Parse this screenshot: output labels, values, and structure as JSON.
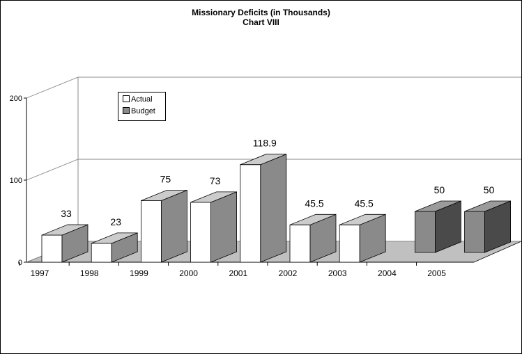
{
  "colors": {
    "actual_front": "#ffffff",
    "actual_top": "#cccccc",
    "budget_front": "#8a8a8a",
    "budget_side": "#4a4a4a",
    "budget_top": "#9b9b9b",
    "floor": "#c0c0c0"
  },
  "chart_data": {
    "type": "bar",
    "title": "Missionary Deficits (in Thousands)",
    "subtitle": "Chart VIII",
    "categories": [
      "1997",
      "1998",
      "1999",
      "2000",
      "2001",
      "2002",
      "2003",
      "2004",
      "2005"
    ],
    "series": [
      {
        "name": "Actual",
        "values": [
          33,
          23,
          75,
          73,
          118.9,
          45.5,
          45.5,
          null,
          null
        ]
      },
      {
        "name": "Budget",
        "values": [
          null,
          null,
          null,
          null,
          null,
          null,
          null,
          null,
          50
        ]
      }
    ],
    "data_labels": [
      "33",
      "23",
      "75",
      "73",
      "118.9",
      "45.5",
      "45.5",
      "50",
      "50"
    ],
    "y_ticks": [
      "0",
      "100",
      "200"
    ],
    "ylim": [
      0,
      200
    ],
    "grid": true,
    "legend": "top-left"
  }
}
